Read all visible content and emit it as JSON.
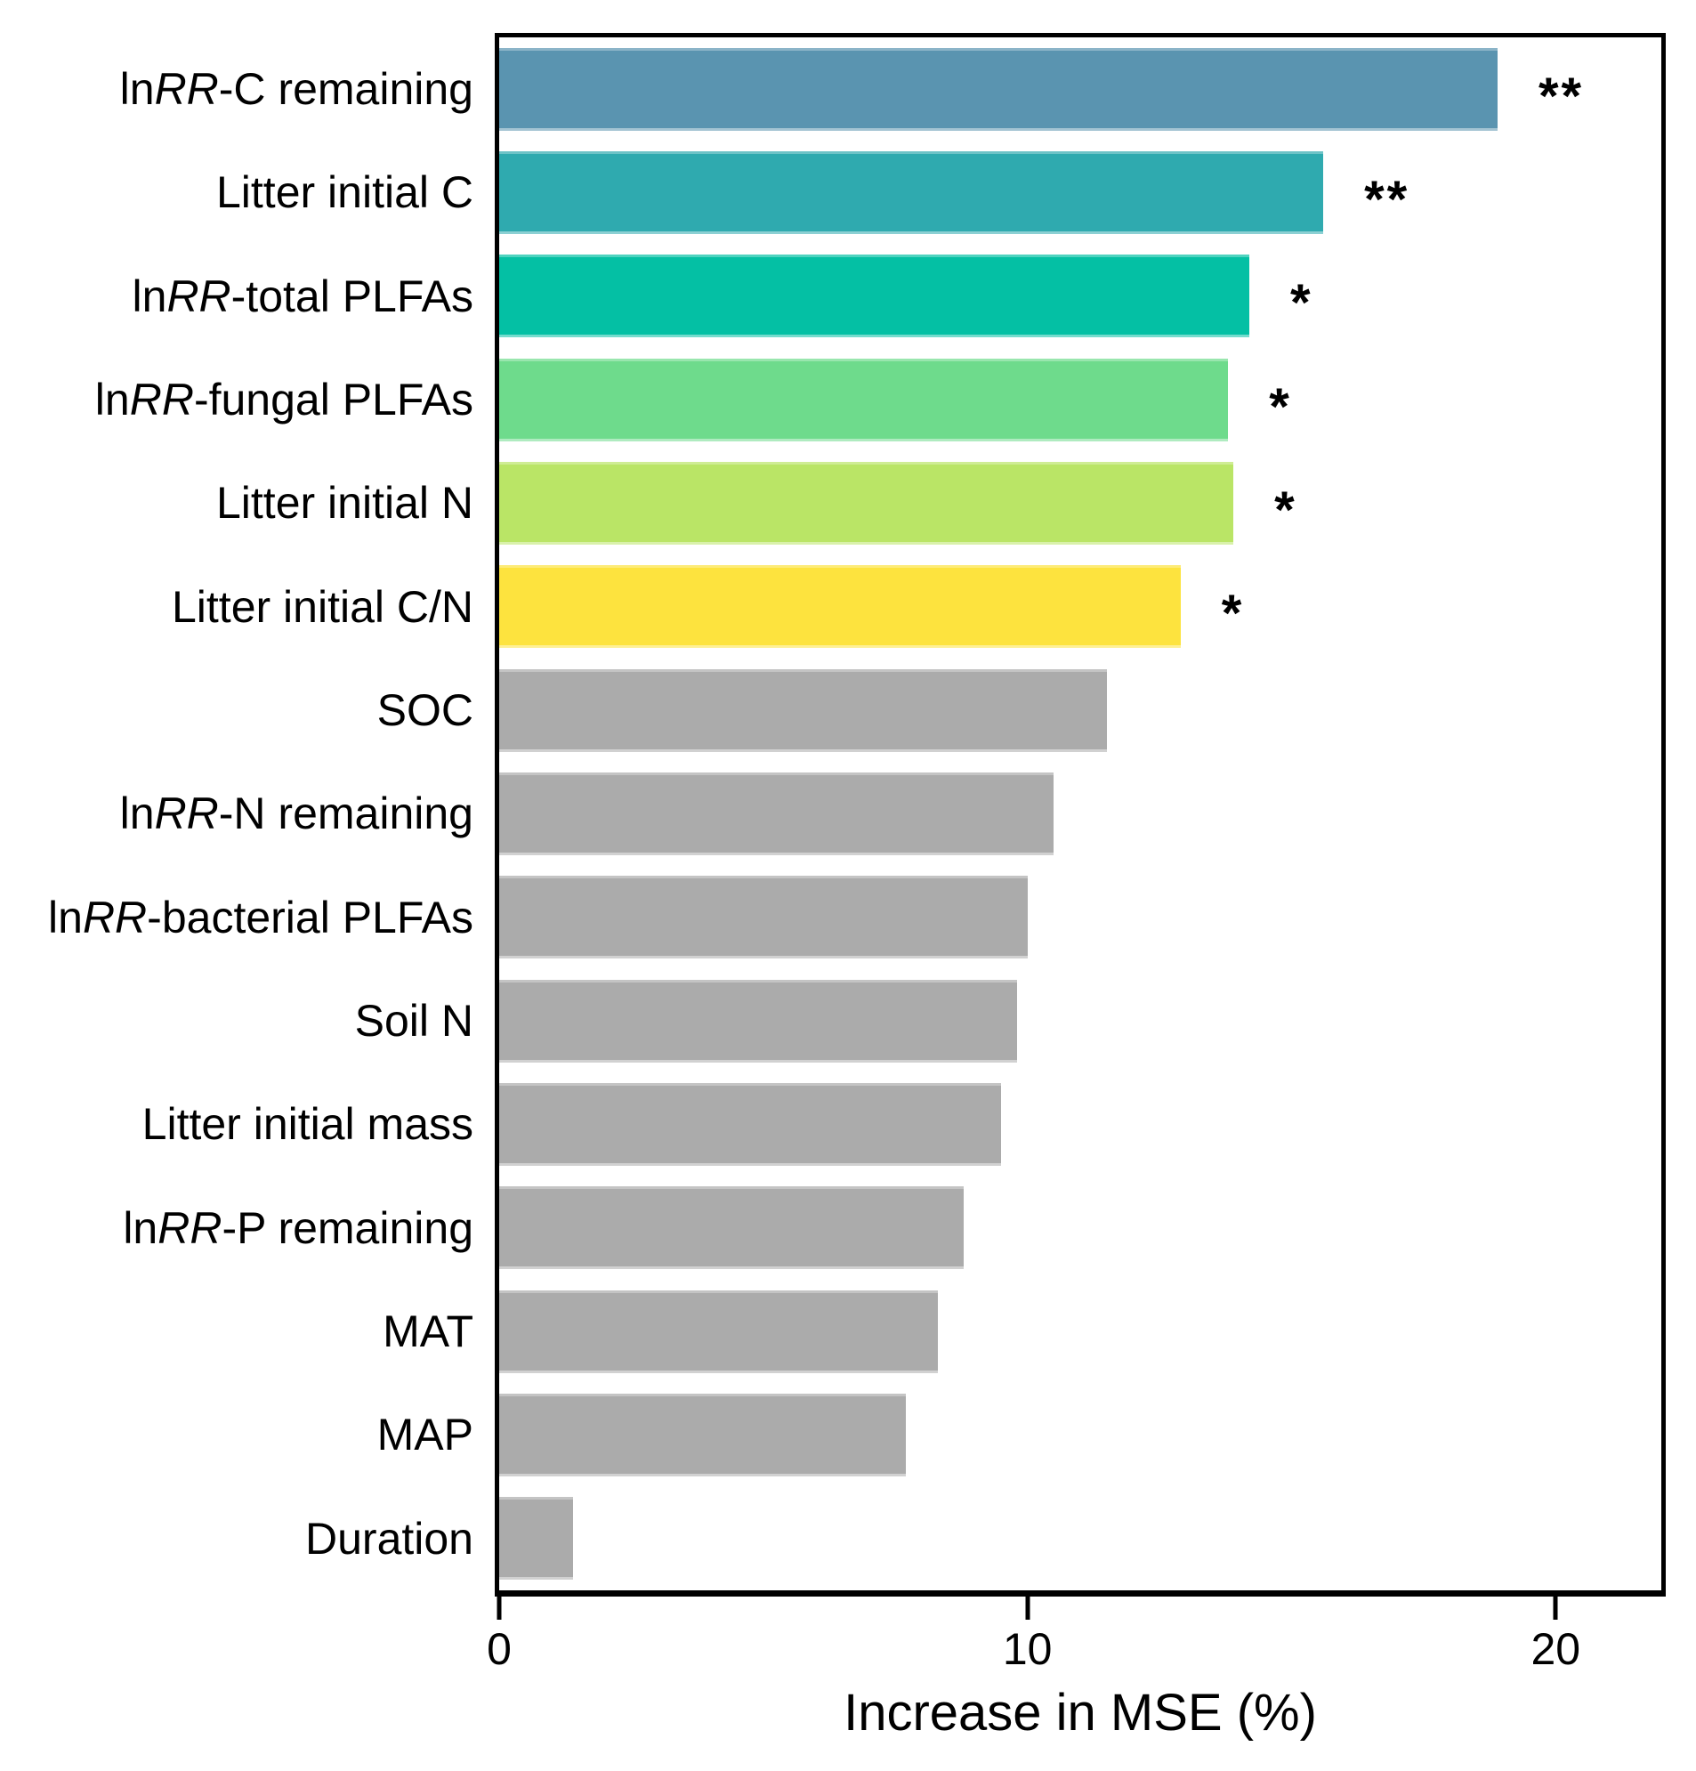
{
  "figure": {
    "background": "#ffffff",
    "axis_color": "#000000"
  },
  "chart_data": {
    "type": "bar",
    "orientation": "horizontal",
    "title": "",
    "xlabel": "Increase in MSE (%)",
    "ylabel": "",
    "xlim": [
      0,
      22
    ],
    "xticks": [
      0,
      10,
      20
    ],
    "grid": false,
    "legend": false,
    "categories": [
      "ln RR-C remaining",
      "Litter initial C",
      "ln RR-total PLFAs",
      "ln RR-fungal PLFAs",
      "Litter initial N",
      "Litter initial C/N",
      "SOC",
      "ln RR-N remaining",
      "ln RR-bacterial PLFAs",
      "Soil N",
      "Litter initial mass",
      "ln RR-P remaining",
      "MAT",
      "MAP",
      "Duration"
    ],
    "values": [
      18.9,
      15.6,
      14.2,
      13.8,
      13.9,
      12.9,
      11.5,
      10.5,
      10.0,
      9.8,
      9.5,
      8.8,
      8.3,
      7.7,
      1.4
    ],
    "significance": [
      "**",
      "**",
      "*",
      "*",
      "*",
      "*",
      "",
      "",
      "",
      "",
      "",
      "",
      "",
      "",
      ""
    ],
    "bar_colors": [
      "#5a94b0",
      "#2faaaf",
      "#04c0a4",
      "#6edb8c",
      "#bae566",
      "#fde33e",
      "#ababab",
      "#ababab",
      "#ababab",
      "#ababab",
      "#ababab",
      "#ababab",
      "#ababab",
      "#ababab",
      "#ababab"
    ],
    "italic_token": "RR"
  }
}
